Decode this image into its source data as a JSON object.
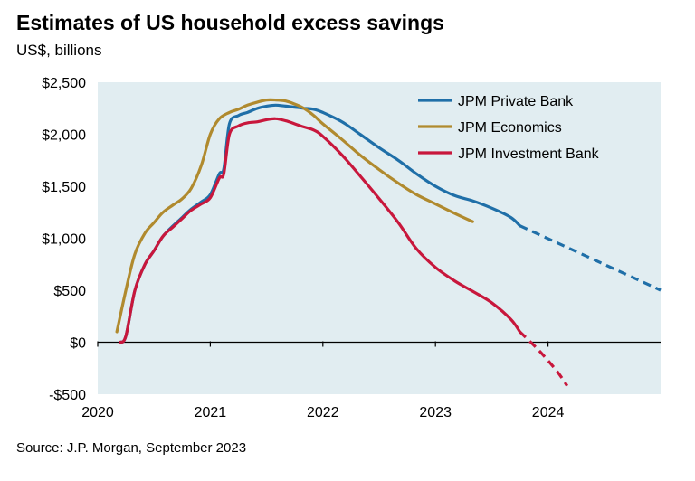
{
  "title": "Estimates of US household excess savings",
  "subtitle": "US$, billions",
  "source": "Source: J.P. Morgan, September 2023",
  "chart_data": {
    "type": "line",
    "title": "Estimates of US household excess savings",
    "ylabel": "US$, billions",
    "xlim": [
      2020.0,
      2025.0
    ],
    "ylim": [
      -500,
      2500
    ],
    "x_ticks": [
      2020,
      2021,
      2022,
      2023,
      2024
    ],
    "x_tick_labels": [
      "2020",
      "2021",
      "2022",
      "2023",
      "2024"
    ],
    "y_ticks": [
      -500,
      0,
      500,
      1000,
      1500,
      2000,
      2500
    ],
    "y_tick_labels": [
      "-$500",
      "$0",
      "$500",
      "$1,000",
      "$1,500",
      "$2,000",
      "$2,500"
    ],
    "grid": false,
    "legend_position": "top-right",
    "series": [
      {
        "name": "JPM Private Bank",
        "color": "#1f6fa8",
        "x": [
          2020.2,
          2020.25,
          2020.33,
          2020.42,
          2020.5,
          2020.58,
          2020.67,
          2020.75,
          2020.83,
          2020.92,
          2021.0,
          2021.08,
          2021.12,
          2021.17,
          2021.25,
          2021.33,
          2021.42,
          2021.5,
          2021.58,
          2021.67,
          2021.75,
          2021.83,
          2021.92,
          2022.0,
          2022.17,
          2022.33,
          2022.5,
          2022.67,
          2022.83,
          2023.0,
          2023.17,
          2023.33,
          2023.5,
          2023.67,
          2023.75
        ],
        "y": [
          0,
          60,
          500,
          750,
          880,
          1020,
          1120,
          1200,
          1280,
          1350,
          1420,
          1620,
          1670,
          2100,
          2180,
          2210,
          2250,
          2270,
          2280,
          2270,
          2260,
          2250,
          2240,
          2210,
          2120,
          2000,
          1870,
          1750,
          1620,
          1500,
          1410,
          1360,
          1290,
          1200,
          1120
        ]
      },
      {
        "name": "JPM Economics",
        "color": "#b08a2e",
        "x": [
          2020.17,
          2020.25,
          2020.33,
          2020.42,
          2020.5,
          2020.58,
          2020.67,
          2020.75,
          2020.83,
          2020.92,
          2021.0,
          2021.08,
          2021.17,
          2021.25,
          2021.33,
          2021.42,
          2021.5,
          2021.58,
          2021.67,
          2021.75,
          2021.83,
          2021.92,
          2022.0,
          2022.17,
          2022.33,
          2022.5,
          2022.67,
          2022.83,
          2023.0,
          2023.17,
          2023.33
        ],
        "y": [
          100,
          500,
          850,
          1050,
          1150,
          1250,
          1320,
          1380,
          1480,
          1700,
          2000,
          2150,
          2210,
          2240,
          2280,
          2310,
          2330,
          2330,
          2320,
          2290,
          2250,
          2180,
          2100,
          1950,
          1800,
          1660,
          1530,
          1420,
          1330,
          1240,
          1160
        ]
      },
      {
        "name": "JPM Investment Bank",
        "color": "#c8173c",
        "x": [
          2020.2,
          2020.25,
          2020.33,
          2020.42,
          2020.5,
          2020.58,
          2020.67,
          2020.75,
          2020.83,
          2020.92,
          2021.0,
          2021.08,
          2021.12,
          2021.17,
          2021.25,
          2021.33,
          2021.42,
          2021.5,
          2021.58,
          2021.67,
          2021.75,
          2021.83,
          2021.92,
          2022.0,
          2022.17,
          2022.33,
          2022.5,
          2022.67,
          2022.83,
          2023.0,
          2023.17,
          2023.33,
          2023.5,
          2023.67,
          2023.75
        ],
        "y": [
          0,
          60,
          500,
          750,
          880,
          1020,
          1110,
          1190,
          1270,
          1330,
          1390,
          1580,
          1620,
          2000,
          2080,
          2110,
          2120,
          2140,
          2150,
          2130,
          2100,
          2070,
          2040,
          1980,
          1800,
          1600,
          1380,
          1150,
          900,
          720,
          590,
          490,
          380,
          220,
          100
        ]
      }
    ],
    "projections": [
      {
        "name": "JPM Private Bank",
        "color": "#1f6fa8",
        "x": [
          2023.75,
          2025.0
        ],
        "y": [
          1120,
          500
        ]
      },
      {
        "name": "JPM Investment Bank",
        "color": "#c8173c",
        "x": [
          2023.75,
          2023.92,
          2024.08,
          2024.17
        ],
        "y": [
          100,
          -80,
          -280,
          -420
        ]
      }
    ]
  }
}
